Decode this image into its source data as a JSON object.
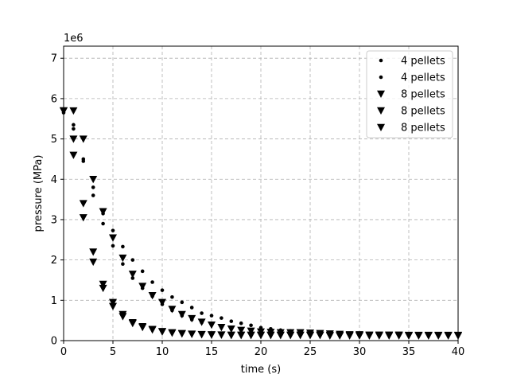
{
  "chart_data": {
    "type": "scatter",
    "title": "",
    "xlabel": "time (s)",
    "ylabel": "pressure (MPa)",
    "offset_text": "1e6",
    "xlim": [
      0,
      40
    ],
    "ylim": [
      0,
      7300000
    ],
    "xticks": [
      0,
      5,
      10,
      15,
      20,
      25,
      30,
      35,
      40
    ],
    "yticks": [
      0,
      1000000,
      2000000,
      3000000,
      4000000,
      5000000,
      6000000,
      7000000
    ],
    "xtick_labels": [
      "0",
      "5",
      "10",
      "15",
      "20",
      "25",
      "30",
      "35",
      "40"
    ],
    "ytick_labels": [
      "0",
      "1",
      "2",
      "3",
      "4",
      "5",
      "6",
      "7"
    ],
    "grid": true,
    "legend_position": "top-right",
    "series": [
      {
        "name": "4 pellets",
        "marker": "dot",
        "color": "#000000",
        "x": [
          0,
          1,
          2,
          3,
          4,
          5,
          6,
          7,
          8,
          9,
          10,
          11,
          12,
          13,
          14,
          15,
          16,
          17,
          18,
          19,
          20,
          21,
          22,
          23
        ],
        "y": [
          5700000,
          5350000,
          4500000,
          3800000,
          2900000,
          2350000,
          1900000,
          1550000,
          1300000,
          1100000,
          900000,
          750000,
          620000,
          520000,
          450000,
          400000,
          340000,
          300000,
          270000,
          250000,
          230000,
          210000,
          200000,
          190000
        ]
      },
      {
        "name": "4 pellets",
        "marker": "dot",
        "color": "#000000",
        "x": [
          0,
          1,
          2,
          3,
          4,
          5,
          6,
          7,
          8,
          9,
          10,
          11,
          12,
          13,
          14,
          15,
          16,
          17,
          18,
          19,
          20,
          21,
          22,
          23
        ],
        "y": [
          5650000,
          5250000,
          4450000,
          3600000,
          3150000,
          2730000,
          2330000,
          2000000,
          1720000,
          1450000,
          1250000,
          1080000,
          950000,
          820000,
          680000,
          620000,
          560000,
          480000,
          430000,
          380000,
          320000,
          290000,
          260000,
          240000
        ]
      },
      {
        "name": "8 pellets",
        "marker": "triangle-down",
        "color": "#000000",
        "x": [
          0,
          1,
          2,
          3,
          4,
          5,
          6,
          7,
          8,
          9,
          10,
          11,
          12,
          13,
          14,
          15,
          16,
          17,
          18,
          19,
          20,
          21,
          22,
          23,
          24,
          25,
          26,
          27,
          28,
          29,
          30,
          31,
          32,
          33,
          34,
          35,
          36,
          37,
          38,
          39,
          40
        ],
        "y": [
          5700000,
          4600000,
          3050000,
          1950000,
          1300000,
          850000,
          600000,
          430000,
          330000,
          270000,
          220000,
          190000,
          170000,
          160000,
          150000,
          140000,
          140000,
          130000,
          130000,
          130000,
          130000,
          130000,
          130000,
          130000,
          130000,
          130000,
          130000,
          120000,
          120000,
          120000,
          120000,
          120000,
          120000,
          120000,
          120000,
          120000,
          120000,
          120000,
          120000,
          120000,
          120000
        ]
      },
      {
        "name": "8 pellets",
        "marker": "triangle-down",
        "color": "#000000",
        "x": [
          0,
          1,
          2,
          3,
          4,
          5,
          6,
          7,
          8,
          9,
          10,
          11,
          12,
          13,
          14,
          15,
          16,
          17,
          18,
          19,
          20,
          21,
          22,
          23,
          24,
          25,
          26,
          27,
          28,
          29,
          30,
          31,
          32,
          33,
          34,
          35,
          36,
          37,
          38,
          39,
          40
        ],
        "y": [
          5700000,
          5000000,
          3400000,
          2200000,
          1400000,
          950000,
          650000,
          450000,
          350000,
          280000,
          230000,
          200000,
          180000,
          165000,
          155000,
          150000,
          145000,
          140000,
          140000,
          140000,
          140000,
          140000,
          140000,
          140000,
          140000,
          140000,
          140000,
          135000,
          135000,
          135000,
          135000,
          135000,
          135000,
          135000,
          135000,
          135000,
          135000,
          135000,
          135000,
          135000,
          135000
        ]
      },
      {
        "name": "8 pellets",
        "marker": "triangle-down",
        "color": "#000000",
        "x": [
          0,
          1,
          2,
          3,
          4,
          5,
          6,
          7,
          8,
          9,
          10,
          11,
          12,
          13,
          14,
          15,
          16,
          17,
          18,
          19,
          20,
          21,
          22,
          23,
          24,
          25,
          26,
          27,
          28,
          29,
          30,
          31,
          32,
          33,
          34,
          35,
          36,
          37,
          38,
          39,
          40
        ],
        "y": [
          5700000,
          5700000,
          5000000,
          4000000,
          3200000,
          2550000,
          2050000,
          1650000,
          1350000,
          1120000,
          950000,
          780000,
          650000,
          550000,
          460000,
          390000,
          330000,
          290000,
          260000,
          240000,
          220000,
          210000,
          200000,
          200000,
          200000,
          190000,
          180000,
          170000,
          160000,
          150000,
          150000,
          140000,
          140000,
          140000,
          140000,
          130000,
          130000,
          130000,
          130000,
          130000,
          130000
        ]
      }
    ]
  }
}
